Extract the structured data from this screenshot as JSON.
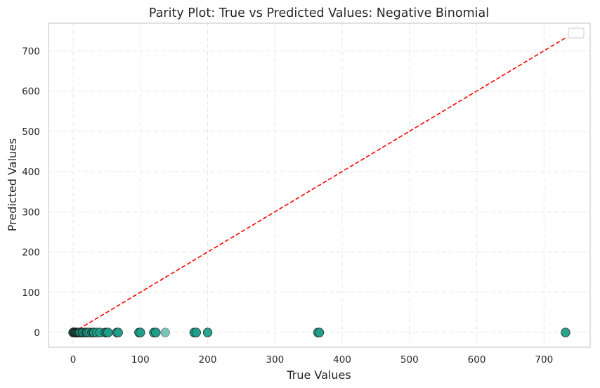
{
  "chart_data": {
    "type": "scatter",
    "title": "Parity Plot: True vs Predicted Values: Negative Binomial",
    "xlabel": "True Values",
    "ylabel": "Predicted Values",
    "xlim": [
      -36.6,
      768.6
    ],
    "ylim": [
      -36.6,
      768.6
    ],
    "xticks": [
      0,
      100,
      200,
      300,
      400,
      500,
      600,
      700
    ],
    "yticks": [
      0,
      100,
      200,
      300,
      400,
      500,
      600,
      700
    ],
    "grid": true,
    "legend": "top-right",
    "colors": {
      "point_fill": "#1f9e89",
      "point_edge": "#1a1a1a",
      "parity_line": "#ff0000",
      "grid": "#e6e6e6",
      "frame": "#cccccc"
    },
    "reference_line": {
      "from": [
        0,
        0
      ],
      "to": [
        732,
        732
      ],
      "style": "dashed"
    },
    "series": [
      {
        "points": [
          {
            "x": 0,
            "y": 0
          },
          {
            "x": 1,
            "y": 1
          },
          {
            "x": 2,
            "y": 0
          },
          {
            "x": 3,
            "y": 0
          },
          {
            "x": 4,
            "y": 0
          },
          {
            "x": 5,
            "y": 0
          },
          {
            "x": 6,
            "y": 0
          },
          {
            "x": 7,
            "y": 0
          },
          {
            "x": 8,
            "y": 0
          },
          {
            "x": 9,
            "y": 0
          },
          {
            "x": 10,
            "y": 0
          },
          {
            "x": 12,
            "y": 0
          },
          {
            "x": 14,
            "y": 0
          },
          {
            "x": 15,
            "y": 0
          },
          {
            "x": 18,
            "y": 0
          },
          {
            "x": 20,
            "y": 0
          },
          {
            "x": 21,
            "y": 0
          },
          {
            "x": 24,
            "y": 0
          },
          {
            "x": 28,
            "y": 0
          },
          {
            "x": 30,
            "y": 0
          },
          {
            "x": 31,
            "y": 0
          },
          {
            "x": 35,
            "y": 0
          },
          {
            "x": 40,
            "y": 0
          },
          {
            "x": 48,
            "y": 0
          },
          {
            "x": 50,
            "y": 0
          },
          {
            "x": 52,
            "y": 0
          },
          {
            "x": 65,
            "y": 0
          },
          {
            "x": 67,
            "y": 0
          },
          {
            "x": 98,
            "y": 0
          },
          {
            "x": 100,
            "y": 0
          },
          {
            "x": 120,
            "y": 0
          },
          {
            "x": 123,
            "y": 0
          },
          {
            "x": 137,
            "y": 0,
            "alpha": 0.6
          },
          {
            "x": 180,
            "y": 0
          },
          {
            "x": 183,
            "y": 0
          },
          {
            "x": 200,
            "y": 0
          },
          {
            "x": 364,
            "y": 0
          },
          {
            "x": 366,
            "y": 0
          },
          {
            "x": 732,
            "y": 0
          }
        ]
      }
    ]
  }
}
